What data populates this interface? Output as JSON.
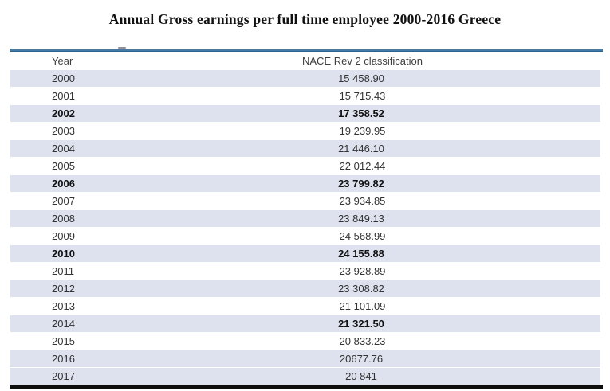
{
  "title": "Annual Gross earnings per full time employee 2000-2016 Greece",
  "table": {
    "columns": [
      "Year",
      "NACE Rev 2 classification"
    ],
    "rows": [
      {
        "year": "2000",
        "value": "15 458.90",
        "year_bold": false,
        "value_bold": false,
        "shaded": true
      },
      {
        "year": "2001",
        "value": "15 715.43",
        "year_bold": false,
        "value_bold": false,
        "shaded": false
      },
      {
        "year": "2002",
        "value": "17 358.52",
        "year_bold": true,
        "value_bold": true,
        "shaded": true
      },
      {
        "year": "2003",
        "value": "19 239.95",
        "year_bold": false,
        "value_bold": false,
        "shaded": false
      },
      {
        "year": "2004",
        "value": "21 446.10",
        "year_bold": false,
        "value_bold": false,
        "shaded": true
      },
      {
        "year": "2005",
        "value": "22 012.44",
        "year_bold": false,
        "value_bold": false,
        "shaded": false
      },
      {
        "year": "2006",
        "value": "23 799.82",
        "year_bold": true,
        "value_bold": true,
        "shaded": true
      },
      {
        "year": "2007",
        "value": "23 934.85",
        "year_bold": false,
        "value_bold": false,
        "shaded": false
      },
      {
        "year": "2008",
        "value": "23 849.13",
        "year_bold": false,
        "value_bold": false,
        "shaded": true
      },
      {
        "year": "2009",
        "value": "24 568.99",
        "year_bold": false,
        "value_bold": false,
        "shaded": false
      },
      {
        "year": "2010",
        "value": "24 155.88",
        "year_bold": true,
        "value_bold": true,
        "shaded": true
      },
      {
        "year": "2011",
        "value": "23 928.89",
        "year_bold": false,
        "value_bold": false,
        "shaded": false
      },
      {
        "year": "2012",
        "value": "23 308.82",
        "year_bold": false,
        "value_bold": false,
        "shaded": true
      },
      {
        "year": "2013",
        "value": "21 101.09",
        "year_bold": false,
        "value_bold": false,
        "shaded": false
      },
      {
        "year": "2014",
        "value": "21 321.50",
        "year_bold": false,
        "value_bold": true,
        "shaded": true
      },
      {
        "year": "2015",
        "value": "20 833.23",
        "year_bold": false,
        "value_bold": false,
        "shaded": false
      },
      {
        "year": "2016",
        "value": "20677.76",
        "year_bold": false,
        "value_bold": false,
        "shaded": true
      },
      {
        "year": "2017",
        "value": "20 841",
        "year_bold": false,
        "value_bold": false,
        "shaded": true
      }
    ]
  },
  "colors": {
    "accent_dark": "#2a648f",
    "accent_light": "#6f9dc4",
    "row_shade": "#dde2ee",
    "bottom_line": "#0e0e0e"
  }
}
